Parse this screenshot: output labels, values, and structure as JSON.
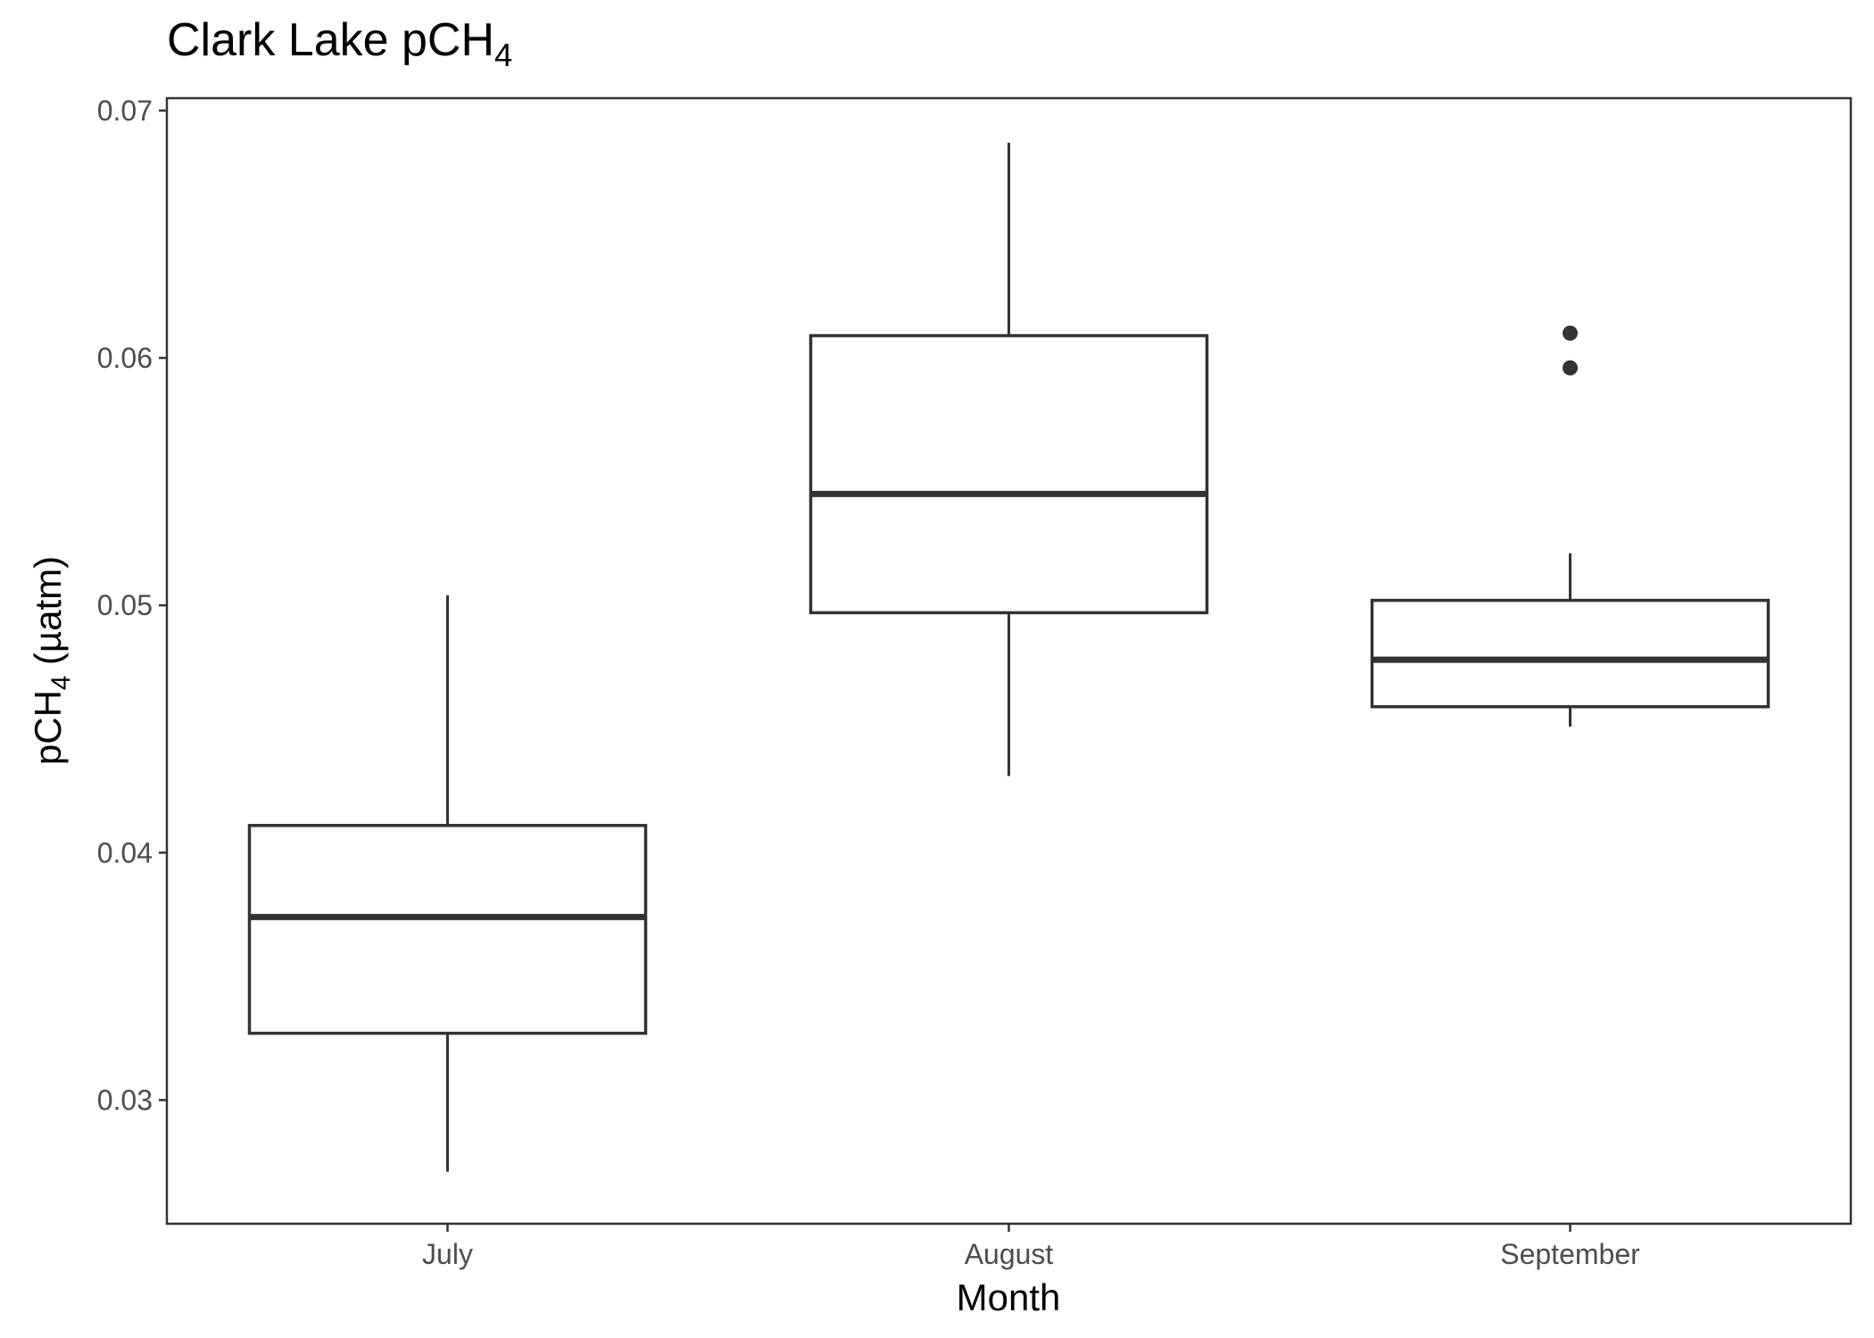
{
  "chart_data": {
    "type": "box",
    "title": {
      "main": "Clark Lake pCH",
      "sub": "4"
    },
    "xlabel": "Month",
    "ylabel": {
      "pre": "pCH",
      "sub": "4",
      "post": " (µatm)"
    },
    "categories": [
      "July",
      "August",
      "September"
    ],
    "ylim": [
      0.025,
      0.0705
    ],
    "yticks": [
      0.03,
      0.04,
      0.05,
      0.06,
      0.07
    ],
    "ytick_labels": [
      "0.03",
      "0.04",
      "0.05",
      "0.06",
      "0.07"
    ],
    "grid": false,
    "boxes": [
      {
        "category": "July",
        "whisker_low": 0.0271,
        "q1": 0.0327,
        "median": 0.0374,
        "q3": 0.0411,
        "whisker_high": 0.0504,
        "outliers": []
      },
      {
        "category": "August",
        "whisker_low": 0.0431,
        "q1": 0.0497,
        "median": 0.0545,
        "q3": 0.0609,
        "whisker_high": 0.0687,
        "outliers": []
      },
      {
        "category": "September",
        "whisker_low": 0.0451,
        "q1": 0.0459,
        "median": 0.0478,
        "q3": 0.0502,
        "whisker_high": 0.0521,
        "outliers": [
          0.0596,
          0.061
        ]
      }
    ],
    "colors": {
      "stroke": "#333333",
      "panel_border": "#333333",
      "tick_text": "#4d4d4d",
      "text": "#000000",
      "background": "#ffffff"
    }
  }
}
